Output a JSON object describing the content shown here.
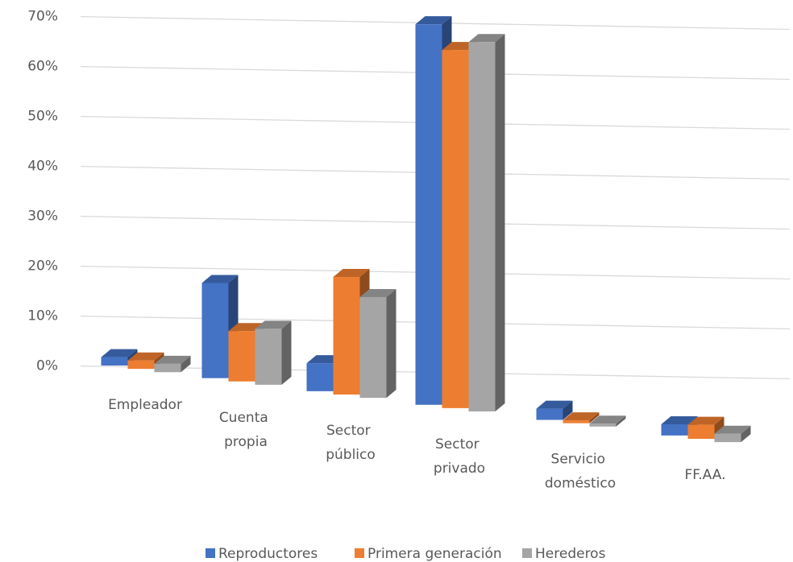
{
  "chart_data": {
    "type": "bar3d",
    "categories": [
      "Empleador",
      "Cuenta propia",
      "Sector público",
      "Sector privado",
      "Servicio doméstico",
      "FF.AA."
    ],
    "series": [
      {
        "name": "Reproductores",
        "color": "#4472c4",
        "values": [
          1.5,
          17,
          5,
          68,
          2,
          2
        ]
      },
      {
        "name": "Primera generación",
        "color": "#ed7d31",
        "values": [
          1.5,
          9,
          21,
          64,
          0.5,
          2.5
        ]
      },
      {
        "name": "Herederos",
        "color": "#a5a5a5",
        "values": [
          1.5,
          10,
          18,
          66,
          0.5,
          1.5
        ]
      }
    ],
    "ylim": [
      0,
      70
    ],
    "yticks": [
      {
        "value": 0,
        "label": "0%"
      },
      {
        "value": 10,
        "label": "10%"
      },
      {
        "value": 20,
        "label": "20%"
      },
      {
        "value": 30,
        "label": "30%"
      },
      {
        "value": 40,
        "label": "40%"
      },
      {
        "value": 50,
        "label": "50%"
      },
      {
        "value": 60,
        "label": "60%"
      },
      {
        "value": 70,
        "label": "70%"
      }
    ],
    "grid": true,
    "legend": "bottom"
  }
}
